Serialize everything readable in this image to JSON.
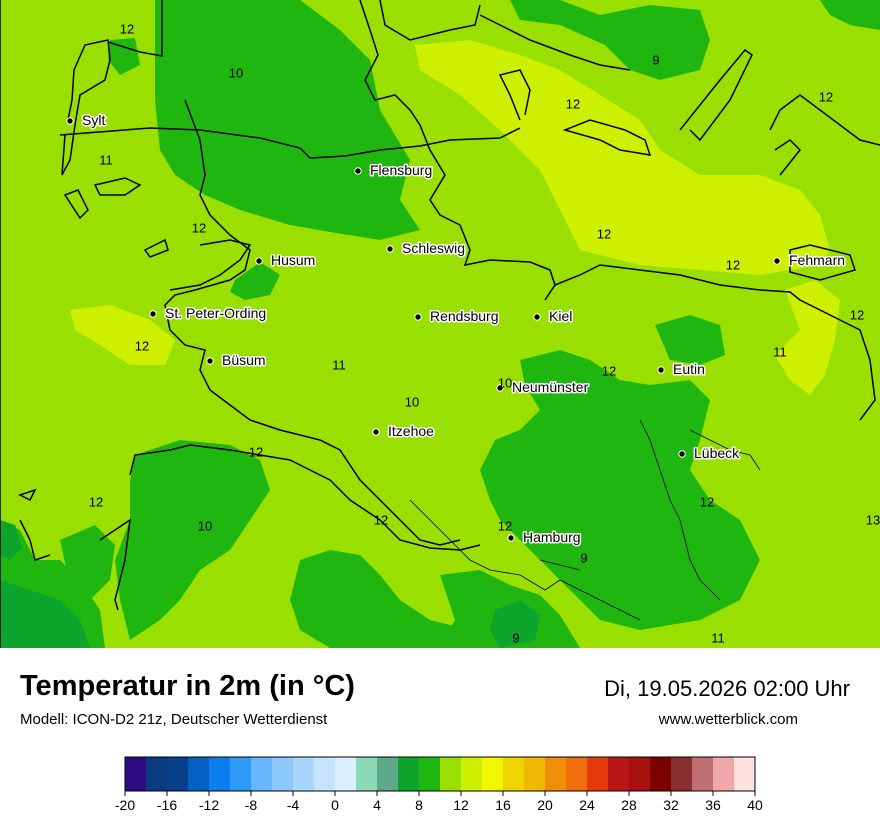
{
  "colors": {
    "g10": "#1fb70f",
    "g11": "#99e000",
    "g12": "#cdf000",
    "g9": "#0ca42c",
    "land": "#99e000"
  },
  "map": {
    "cities": [
      {
        "name": "Sylt"
      },
      {
        "name": "Flensburg"
      },
      {
        "name": "Schleswig"
      },
      {
        "name": "Husum"
      },
      {
        "name": "Fehmarn"
      },
      {
        "name": "St. Peter-Ording"
      },
      {
        "name": "Rendsburg"
      },
      {
        "name": "Kiel"
      },
      {
        "name": "Büsum"
      },
      {
        "name": "Neumünster"
      },
      {
        "name": "Eutin"
      },
      {
        "name": "Itzehoe"
      },
      {
        "name": "Lübeck"
      },
      {
        "name": "Hamburg"
      }
    ],
    "isolines": [
      "12",
      "10",
      "9",
      "12",
      "12",
      "11",
      "12",
      "12",
      "12",
      "12",
      "12",
      "11",
      "12",
      "10",
      "11",
      "12",
      "12",
      "10",
      "12",
      "12",
      "13",
      "10",
      "12",
      "9",
      "9",
      "11"
    ]
  },
  "footer": {
    "title": "Temperatur in 2m (in °C)",
    "subtitle": "Modell: ICON-D2 21z, Deutscher Wetterdienst",
    "datetime": "Di, 19.05.2026 02:00 Uhr",
    "website": "www.wetterblick.com"
  },
  "legend": {
    "colors": [
      "#2e0c86",
      "#0a3a80",
      "#073f8a",
      "#0461c2",
      "#0b7ded",
      "#2e9af8",
      "#67b5fa",
      "#8cc8fb",
      "#a8d6fc",
      "#c6e4fd",
      "#daefff",
      "#8ad9b8",
      "#5ea987",
      "#0ca42c",
      "#1fb70f",
      "#99e000",
      "#cdf000",
      "#f2f600",
      "#f0d400",
      "#f1b800",
      "#f08e0a",
      "#ef6e0a",
      "#e63a0a",
      "#b81515",
      "#a80f0f",
      "#7d0000",
      "#8a2f2f",
      "#c07070",
      "#f0a8a8",
      "#ffe0e0"
    ],
    "ticks": [
      "-20",
      "-16",
      "-12",
      "-8",
      "-4",
      "0",
      "4",
      "8",
      "12",
      "16",
      "20",
      "24",
      "28",
      "32",
      "36",
      "40"
    ]
  }
}
